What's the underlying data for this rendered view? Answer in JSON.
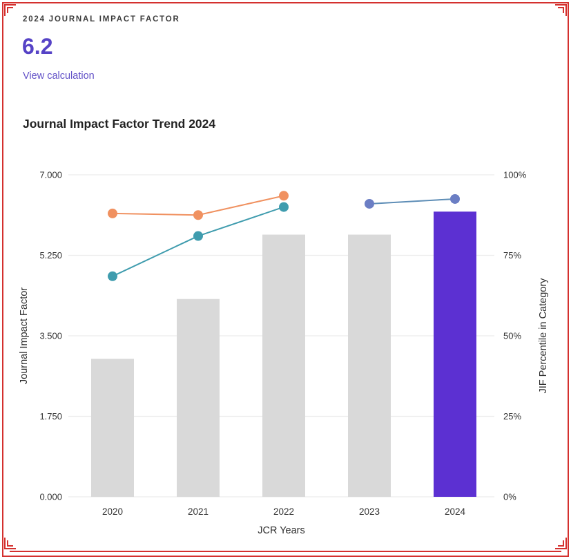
{
  "header": {
    "kicker": "2024 JOURNAL IMPACT FACTOR",
    "value": "6.2",
    "link": "View calculation"
  },
  "colors": {
    "accent_purple": "#5643c6",
    "link_purple": "#6150c7",
    "annotation_red": "#d4302e",
    "bar_gray": "#d9d9d9",
    "bar_highlight": "#5c30d2",
    "line_orange": "#f09160",
    "line_teal": "#3f9cae",
    "dot_blue": "#6b7ec4",
    "gridline": "#ececec",
    "text_dark": "#333333"
  },
  "chart_data": {
    "type": "bar",
    "overlay": "line",
    "title": "Journal Impact Factor Trend 2024",
    "categories": [
      "2020",
      "2021",
      "2022",
      "2023",
      "2024"
    ],
    "bars": {
      "label": "Journal Impact Factor",
      "axis": "left",
      "values": [
        3.0,
        4.3,
        5.7,
        5.7,
        6.2
      ],
      "default_color": "#d9d9d9",
      "highlight_index": 4,
      "highlight_color": "#5c30d2"
    },
    "lines": [
      {
        "id": "percentile-orange",
        "axis": "right",
        "color": "#f09160",
        "line_color": "#f09160",
        "points": [
          [
            "2020",
            88
          ],
          [
            "2021",
            87.5
          ],
          [
            "2022",
            93.5
          ]
        ]
      },
      {
        "id": "percentile-teal",
        "axis": "right",
        "color": "#3f9cae",
        "line_color": "#3f9cae",
        "points": [
          [
            "2020",
            68.5
          ],
          [
            "2021",
            81
          ],
          [
            "2022",
            90
          ]
        ]
      },
      {
        "id": "percentile-blue",
        "axis": "right",
        "color": "#6b7ec4",
        "line_color": "#5d8db6",
        "points": [
          [
            "2023",
            91
          ],
          [
            "2024",
            92.5
          ]
        ]
      }
    ],
    "xlabel": "JCR Years",
    "ylabel_left": "Journal Impact Factor",
    "ylabel_right": "JIF Percentile in Category",
    "yticks_left": [
      {
        "v": 7,
        "label": "7.000"
      },
      {
        "v": 5.25,
        "label": "5.250"
      },
      {
        "v": 3.5,
        "label": "3.500"
      },
      {
        "v": 1.75,
        "label": "1.750"
      },
      {
        "v": 0,
        "label": "0.000"
      }
    ],
    "yticks_right": [
      {
        "v": 100,
        "label": "100%"
      },
      {
        "v": 75,
        "label": "75%"
      },
      {
        "v": 50,
        "label": "50%"
      },
      {
        "v": 25,
        "label": "25%"
      },
      {
        "v": 0,
        "label": "0%"
      }
    ],
    "ylim_left": [
      0,
      7
    ],
    "ylim_right": [
      0,
      100
    ],
    "grid": true,
    "legend": "none"
  }
}
